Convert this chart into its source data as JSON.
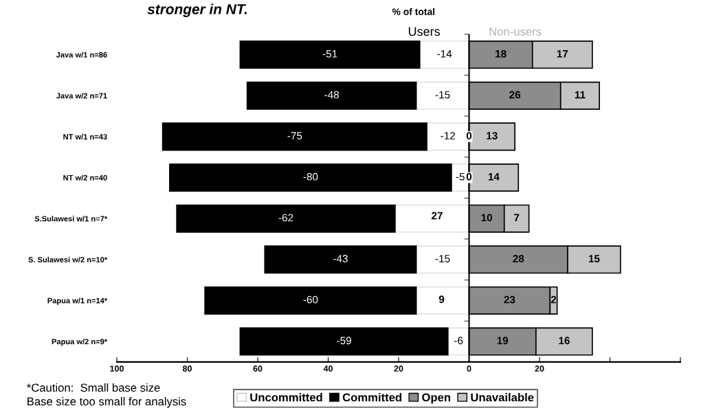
{
  "chart_data": {
    "type": "bar",
    "orientation": "horizontal",
    "stacked": true,
    "title": "stronger in NT.",
    "categories": [
      "Java w/1 n=86",
      "Java w/2 n=71",
      "NT w/1 n=43",
      "NT w/2 n=40",
      "S.Sulawesi w/1 n=7*",
      "S. Sulawesi w/2 n=10*",
      "Papua w/1 n=14*",
      "Papua w/2 n=9*"
    ],
    "series": [
      {
        "name": "Uncommitted",
        "color": "#ffffff",
        "values": [
          -14,
          -15,
          -12,
          -5,
          -21,
          -15,
          -15,
          -6
        ],
        "value_labels": [
          "-14",
          "-15",
          "-12",
          "-5",
          null,
          "-15",
          null,
          "-6"
        ]
      },
      {
        "name": "Committed",
        "color": "#000000",
        "values": [
          -51,
          -48,
          -75,
          -80,
          -62,
          -43,
          -60,
          -59
        ],
        "value_labels": [
          "-51",
          "-48",
          "-75",
          "-80",
          "-62",
          "-43",
          "-60",
          "-59"
        ]
      },
      {
        "name": "Open",
        "color": "#8c8c8c",
        "values": [
          18,
          26,
          0,
          0,
          10,
          28,
          23,
          19
        ],
        "value_labels": [
          "18",
          "26",
          null,
          null,
          "10",
          "28",
          "23",
          "19"
        ]
      },
      {
        "name": "Unavailable",
        "color": "#c4c4c4",
        "values": [
          17,
          11,
          13,
          14,
          7,
          15,
          2,
          16
        ],
        "value_labels": [
          "17",
          "11",
          "13",
          "14",
          "7",
          "15",
          "2",
          "16"
        ]
      }
    ],
    "xlim": [
      -100,
      60
    ],
    "xticks": [
      {
        "value": -100,
        "label": "100"
      },
      {
        "value": -80,
        "label": "80"
      },
      {
        "value": -60,
        "label": "60"
      },
      {
        "value": -40,
        "label": "40"
      },
      {
        "value": -20,
        "label": "20"
      },
      0,
      20,
      {
        "value": 40,
        "label": null
      },
      {
        "value": 60,
        "label": null
      }
    ],
    "annotations": [
      "% of total",
      "Users",
      "Non-users",
      "*Caution:  Small base size",
      "Base size too small for analysis",
      "27",
      "9",
      {
        "text": "0",
        "x": 0,
        "y": "NT w/1 n=43"
      },
      {
        "text": "0",
        "x": 0,
        "y": "NT w/2 n=40"
      }
    ],
    "ref_lines": [
      {
        "axis": "x",
        "value": 0,
        "color": "#000000"
      }
    ],
    "legend": "bottom"
  }
}
